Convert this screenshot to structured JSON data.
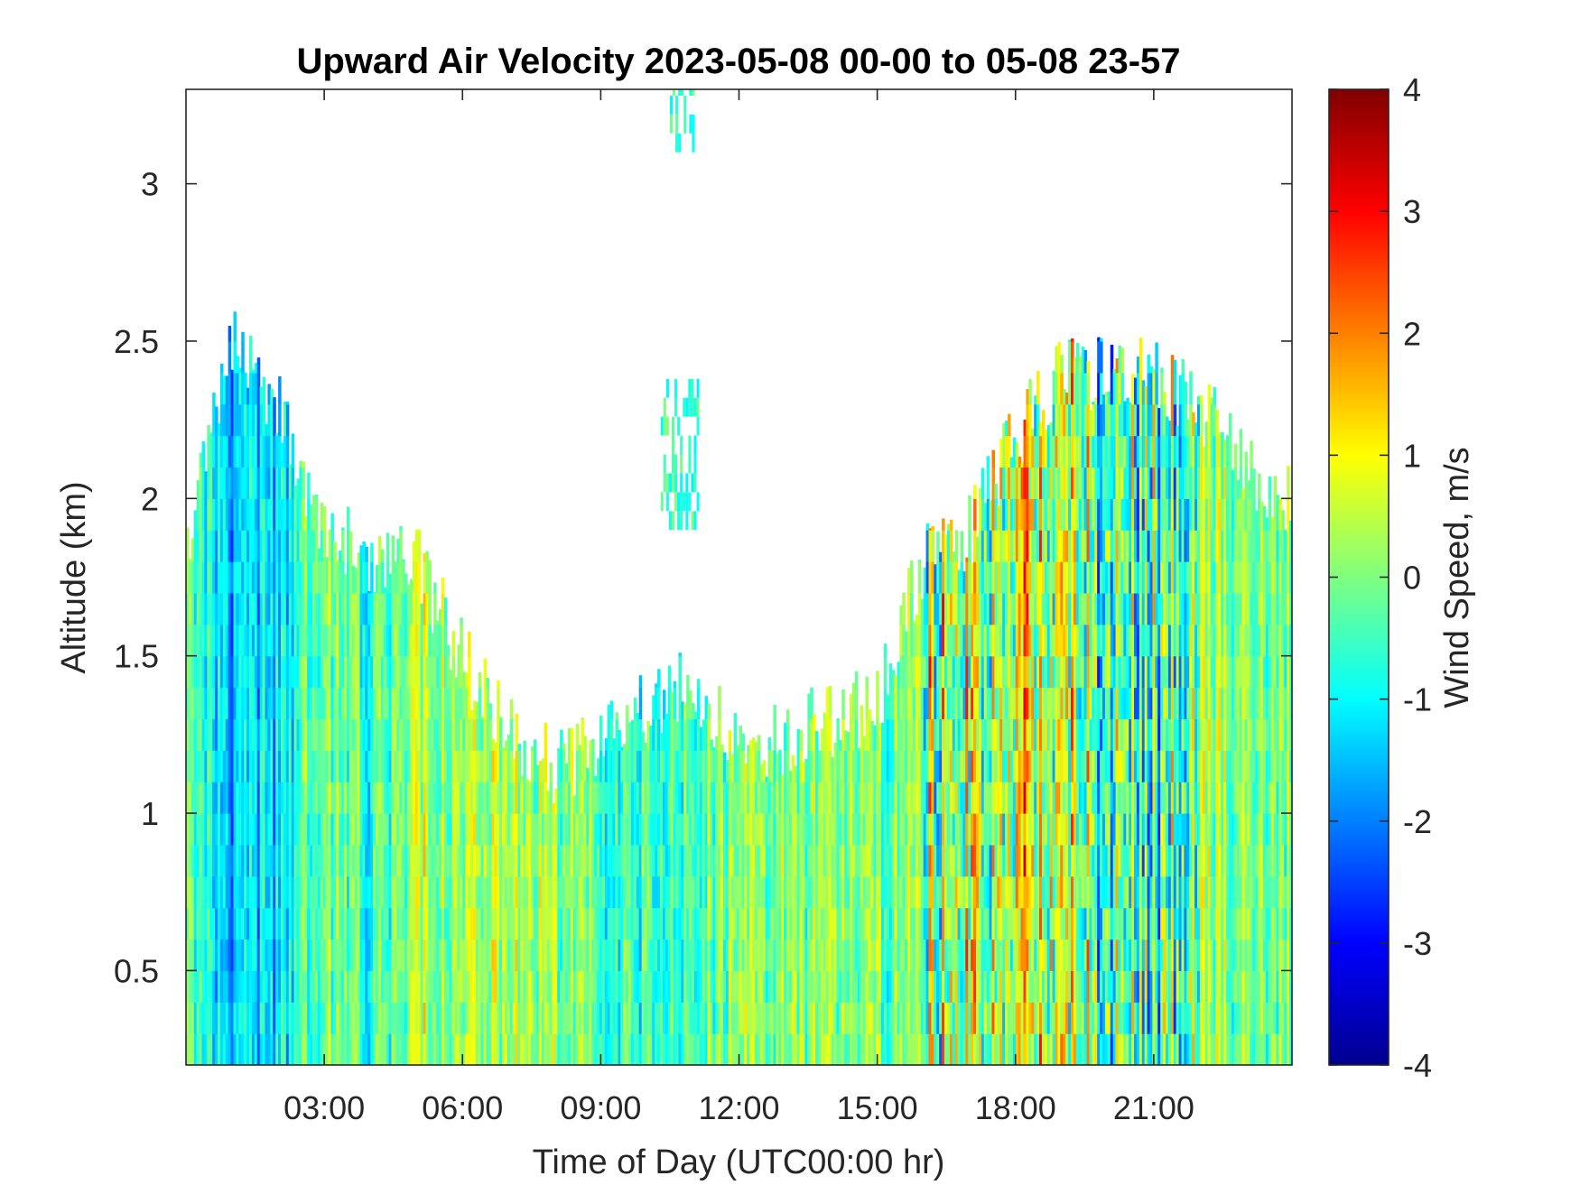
{
  "chart_data": {
    "type": "heatmap",
    "title": "Upward Air Velocity 2023-05-08 00-00 to 05-08 23-57",
    "xlabel": "Time of Day (UTC00:00 hr)",
    "ylabel": "Altitude (km)",
    "xlim_hours": [
      0,
      24
    ],
    "ylim_km": [
      0.2,
      3.3
    ],
    "x_ticks_hours": [
      3,
      6,
      9,
      12,
      15,
      18,
      21
    ],
    "x_tick_labels": [
      "03:00",
      "06:00",
      "09:00",
      "12:00",
      "15:00",
      "18:00",
      "21:00"
    ],
    "y_ticks": [
      0.5,
      1,
      1.5,
      2,
      2.5,
      3
    ],
    "y_tick_labels": [
      "0.5",
      "1",
      "1.5",
      "2",
      "2.5",
      "3"
    ],
    "colorbar": {
      "label": "Wind Speed, m/s",
      "colormap": "jet",
      "range": [
        -4,
        4
      ],
      "ticks": [
        -4,
        -3,
        -2,
        -1,
        0,
        1,
        2,
        3,
        4
      ],
      "tick_labels": [
        "-4",
        "-3",
        "-2",
        "-1",
        "0",
        "1",
        "2",
        "3",
        "4"
      ]
    },
    "grid": false,
    "data_top_km_by_hour": [
      {
        "hour": 0,
        "top_km": 1.85
      },
      {
        "hour": 1,
        "top_km": 2.5
      },
      {
        "hour": 2,
        "top_km": 2.3
      },
      {
        "hour": 3,
        "top_km": 1.9
      },
      {
        "hour": 4,
        "top_km": 1.8
      },
      {
        "hour": 5,
        "top_km": 1.8
      },
      {
        "hour": 6,
        "top_km": 1.5
      },
      {
        "hour": 7,
        "top_km": 1.25
      },
      {
        "hour": 8,
        "top_km": 1.15
      },
      {
        "hour": 9,
        "top_km": 1.2
      },
      {
        "hour": 10,
        "top_km": 1.35
      },
      {
        "hour": 11,
        "top_km": 1.4
      },
      {
        "hour": 12,
        "top_km": 1.2
      },
      {
        "hour": 13,
        "top_km": 1.25
      },
      {
        "hour": 14,
        "top_km": 1.3
      },
      {
        "hour": 15,
        "top_km": 1.35
      },
      {
        "hour": 16,
        "top_km": 1.8
      },
      {
        "hour": 17,
        "top_km": 1.9
      },
      {
        "hour": 18,
        "top_km": 2.2
      },
      {
        "hour": 19,
        "top_km": 2.4
      },
      {
        "hour": 20,
        "top_km": 2.4
      },
      {
        "hour": 21,
        "top_km": 2.4
      },
      {
        "hour": 22,
        "top_km": 2.3
      },
      {
        "hour": 23,
        "top_km": 2.1
      },
      {
        "hour": 24,
        "top_km": 2.0
      }
    ],
    "mean_velocity_m_s_by_hour": [
      {
        "hour": 0,
        "w": 0.3
      },
      {
        "hour": 1,
        "w": -1.8
      },
      {
        "hour": 2,
        "w": -1.2
      },
      {
        "hour": 3,
        "w": 0.2
      },
      {
        "hour": 4,
        "w": -0.8
      },
      {
        "hour": 5,
        "w": 0.4
      },
      {
        "hour": 6,
        "w": 0.2
      },
      {
        "hour": 7,
        "w": 0.3
      },
      {
        "hour": 8,
        "w": 0.1
      },
      {
        "hour": 9,
        "w": -0.4
      },
      {
        "hour": 10,
        "w": -0.5
      },
      {
        "hour": 11,
        "w": -0.3
      },
      {
        "hour": 12,
        "w": 0.0
      },
      {
        "hour": 13,
        "w": 0.1
      },
      {
        "hour": 14,
        "w": 0.0
      },
      {
        "hour": 15,
        "w": -0.2
      },
      {
        "hour": 16,
        "w": 0.3
      },
      {
        "hour": 17,
        "w": 0.8
      },
      {
        "hour": 18,
        "w": 0.6
      },
      {
        "hour": 19,
        "w": 0.9
      },
      {
        "hour": 20,
        "w": -0.5
      },
      {
        "hour": 21,
        "w": -0.3
      },
      {
        "hour": 22,
        "w": 0.2
      },
      {
        "hour": 23,
        "w": 0.0
      },
      {
        "hour": 24,
        "w": 0.0
      }
    ],
    "upper_patches": [
      {
        "hours": [
          10.3,
          11.1
        ],
        "km": [
          1.9,
          2.35
        ]
      },
      {
        "hours": [
          10.5,
          11.0
        ],
        "km": [
          3.1,
          3.3
        ]
      }
    ],
    "colors": {
      "axes": "#262626",
      "background": "#ffffff",
      "no_data": "#ffffff"
    }
  }
}
